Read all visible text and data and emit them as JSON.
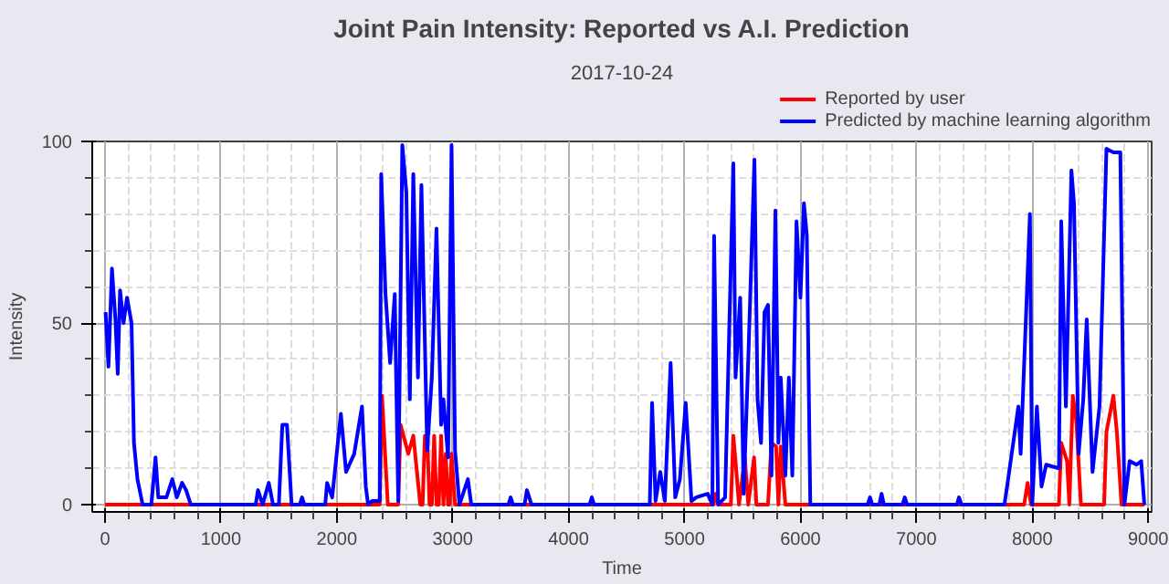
{
  "chart_data": {
    "type": "line",
    "title": "Joint Pain Intensity: Reported vs A.I. Prediction",
    "subtitle": "2017-10-24",
    "xlabel": "Time",
    "ylabel": "Intensity",
    "xlim": [
      -110,
      9030
    ],
    "ylim": [
      -2,
      100
    ],
    "xticks": [
      0,
      1000,
      2000,
      3000,
      4000,
      5000,
      6000,
      7000,
      8000,
      9000
    ],
    "yticks": [
      0,
      50,
      100
    ],
    "grid": true,
    "legend": "top right",
    "marker": "none",
    "line_style": "solid",
    "series": [
      {
        "name": "Reported by user",
        "color": "#ff0000",
        "x": [
          0,
          2370,
          2390,
          2440,
          2530,
          2550,
          2617,
          2660,
          2720,
          2740,
          2760,
          2780,
          2800,
          2820,
          2840,
          2860,
          2880,
          2900,
          2920,
          2940,
          2960,
          2975,
          2990,
          3020,
          3030,
          5250,
          5270,
          5290,
          5400,
          5421,
          5440,
          5470,
          5520,
          5550,
          5600,
          5620,
          5720,
          5750,
          5790,
          5810,
          5830,
          5870,
          7930,
          7960,
          7990,
          8230,
          8250,
          8300,
          8320,
          8350,
          8380,
          8420,
          8620,
          8640,
          8700,
          8730,
          8770,
          8970
        ],
        "values": [
          0,
          0,
          30,
          0,
          0,
          22,
          14,
          19,
          0,
          0,
          19,
          19,
          0,
          0,
          19,
          0,
          0,
          19,
          0,
          14,
          0,
          0,
          14,
          0,
          0,
          0,
          3,
          0,
          0,
          19,
          12,
          0,
          13,
          0,
          13,
          0,
          0,
          17,
          16,
          0,
          16,
          0,
          0,
          6,
          0,
          0,
          17,
          12,
          0,
          30,
          23,
          0,
          0,
          20,
          30,
          20,
          0,
          0
        ]
      },
      {
        "name": "Predicted by machine learning algorithm",
        "color": "#0000ff",
        "x": [
          5,
          30,
          60,
          90,
          110,
          130,
          160,
          190,
          229,
          250,
          280,
          325,
          400,
          436,
          460,
          530,
          581,
          620,
          665,
          700,
          740,
          1163,
          1300,
          1320,
          1360,
          1413,
          1450,
          1500,
          1530,
          1570,
          1610,
          1680,
          1700,
          1720,
          1900,
          1916,
          1960,
          2035,
          2080,
          2150,
          2217,
          2250,
          2270,
          2305,
          2370,
          2383,
          2420,
          2460,
          2500,
          2530,
          2565,
          2600,
          2630,
          2660,
          2700,
          2730,
          2780,
          2820,
          2860,
          2900,
          2920,
          2960,
          2990,
          3020,
          3058,
          3131,
          3160,
          3480,
          3500,
          3520,
          3620,
          3640,
          3680,
          4180,
          4200,
          4220,
          4700,
          4720,
          4750,
          4790,
          4830,
          4880,
          4920,
          4960,
          5010,
          5060,
          5100,
          5200,
          5240,
          5255,
          5290,
          5350,
          5421,
          5440,
          5480,
          5510,
          5550,
          5603,
          5630,
          5660,
          5690,
          5720,
          5750,
          5784,
          5810,
          5830,
          5870,
          5900,
          5930,
          5966,
          6000,
          6030,
          6055,
          6085,
          6580,
          6600,
          6620,
          6680,
          6700,
          6720,
          6880,
          6900,
          6920,
          7350,
          7368,
          7390,
          7760,
          7783,
          7880,
          7900,
          7980,
          8000,
          8040,
          8080,
          8120,
          8230,
          8250,
          8290,
          8338,
          8360,
          8400,
          8440,
          8470,
          8520,
          8580,
          8640,
          8700,
          8760,
          8780,
          8795,
          8840,
          8900,
          8940,
          8967
        ],
        "values": [
          53,
          38,
          65,
          51,
          36,
          59,
          50,
          57,
          50,
          17,
          7,
          0,
          0,
          13,
          2,
          2,
          7,
          2,
          6,
          4,
          0,
          0,
          0,
          4,
          0,
          6,
          0,
          0,
          22,
          22,
          0,
          0,
          2,
          0,
          0,
          6,
          2,
          25,
          9,
          14,
          27,
          5,
          0,
          1,
          1,
          91,
          58,
          39,
          58,
          1,
          99,
          86,
          29,
          91,
          35,
          88,
          15,
          35,
          76,
          22,
          29,
          13,
          99,
          15,
          0,
          7,
          0,
          0,
          2,
          0,
          0,
          4,
          0,
          0,
          2,
          0,
          0,
          28,
          1,
          9,
          1,
          39,
          2,
          7,
          28,
          1,
          2,
          3,
          0,
          74,
          0,
          2,
          94,
          35,
          57,
          3,
          40,
          95,
          29,
          17,
          53,
          55,
          8,
          81,
          17,
          35,
          8,
          35,
          8,
          78,
          57,
          83,
          74,
          0,
          0,
          2,
          0,
          0,
          3,
          0,
          0,
          2,
          0,
          0,
          2,
          0,
          0,
          5,
          27,
          14,
          80,
          0,
          27,
          5,
          11,
          10,
          78,
          27,
          92,
          83,
          14,
          29,
          51,
          9,
          27,
          98,
          97,
          97,
          41,
          0,
          12,
          11,
          12,
          0
        ]
      }
    ]
  }
}
